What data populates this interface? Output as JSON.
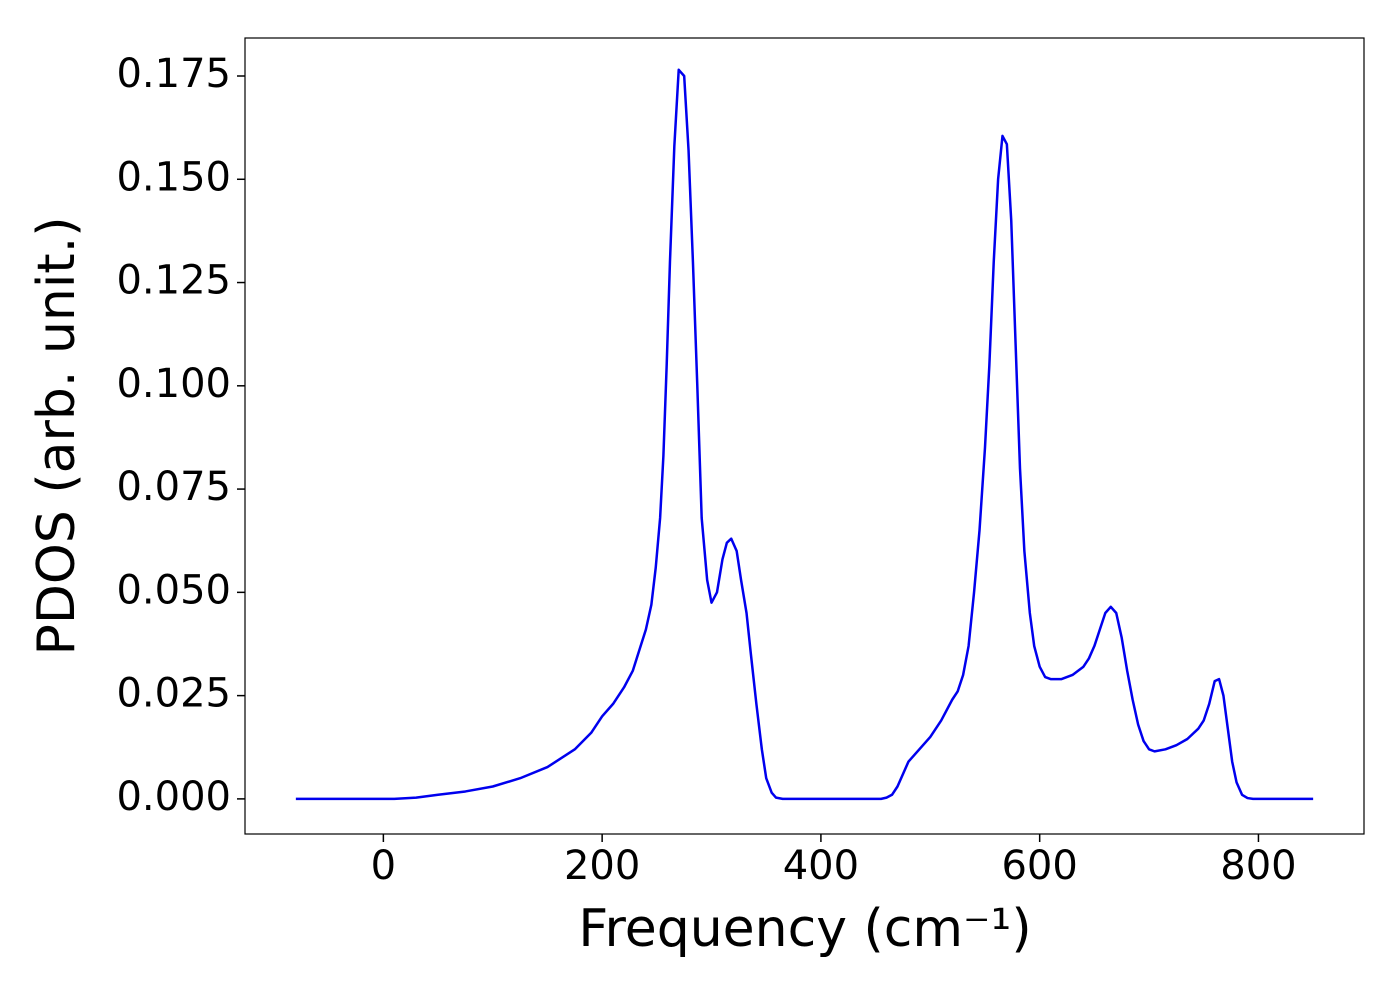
{
  "chart_data": {
    "type": "line",
    "x_label": "Frequency (cm⁻¹)",
    "y_label": "PDOS (arb. unit.)",
    "color": "#0000ee",
    "x": [
      -80,
      10,
      30,
      50,
      75,
      100,
      125,
      150,
      175,
      190,
      200,
      210,
      220,
      228,
      234,
      240,
      245,
      249,
      253,
      256,
      259,
      262,
      266,
      270,
      275,
      279,
      283,
      287,
      291,
      296,
      300,
      305,
      310,
      314,
      318,
      323,
      327,
      332,
      336,
      341,
      346,
      350,
      355,
      359,
      365,
      455,
      460,
      465,
      470,
      475,
      480,
      490,
      500,
      510,
      520,
      525,
      530,
      535,
      540,
      545,
      550,
      554,
      558,
      562,
      566,
      570,
      574,
      578,
      582,
      586,
      591,
      595,
      600,
      605,
      610,
      620,
      630,
      640,
      645,
      650,
      655,
      660,
      665,
      670,
      675,
      680,
      685,
      690,
      695,
      700,
      705,
      715,
      725,
      735,
      745,
      750,
      755,
      760,
      764,
      768,
      772,
      776,
      780,
      785,
      790,
      795,
      850
    ],
    "values": [
      0,
      0,
      0.0003,
      0.001,
      0.0018,
      0.003,
      0.005,
      0.0077,
      0.012,
      0.016,
      0.02,
      0.023,
      0.027,
      0.031,
      0.036,
      0.041,
      0.047,
      0.056,
      0.068,
      0.083,
      0.105,
      0.13,
      0.158,
      0.1765,
      0.175,
      0.157,
      0.13,
      0.1,
      0.068,
      0.053,
      0.0475,
      0.05,
      0.058,
      0.062,
      0.063,
      0.06,
      0.053,
      0.045,
      0.035,
      0.023,
      0.012,
      0.005,
      0.0015,
      0.0003,
      0,
      0,
      0.0003,
      0.001,
      0.003,
      0.006,
      0.009,
      0.012,
      0.015,
      0.019,
      0.024,
      0.026,
      0.03,
      0.037,
      0.05,
      0.065,
      0.085,
      0.105,
      0.13,
      0.15,
      0.1605,
      0.1585,
      0.14,
      0.11,
      0.08,
      0.06,
      0.045,
      0.037,
      0.032,
      0.0295,
      0.029,
      0.029,
      0.03,
      0.032,
      0.034,
      0.037,
      0.041,
      0.045,
      0.0465,
      0.045,
      0.039,
      0.031,
      0.024,
      0.018,
      0.014,
      0.012,
      0.0115,
      0.012,
      0.013,
      0.0145,
      0.017,
      0.019,
      0.023,
      0.0285,
      0.029,
      0.025,
      0.017,
      0.009,
      0.004,
      0.001,
      0.0002,
      0,
      0
    ],
    "xlim": [
      -126.5,
      896.5
    ],
    "xticks": [
      0,
      200,
      400,
      600,
      800
    ],
    "ylim": [
      -0.0085,
      0.1842
    ],
    "yticks": [
      {
        "value": 0,
        "label": "0.000"
      },
      0.025,
      {
        "value": 0.05,
        "label": "0.050"
      },
      0.075,
      {
        "value": 0.1,
        "label": "0.100"
      },
      0.125,
      {
        "value": 0.15,
        "label": "0.150"
      },
      0.175
    ]
  }
}
